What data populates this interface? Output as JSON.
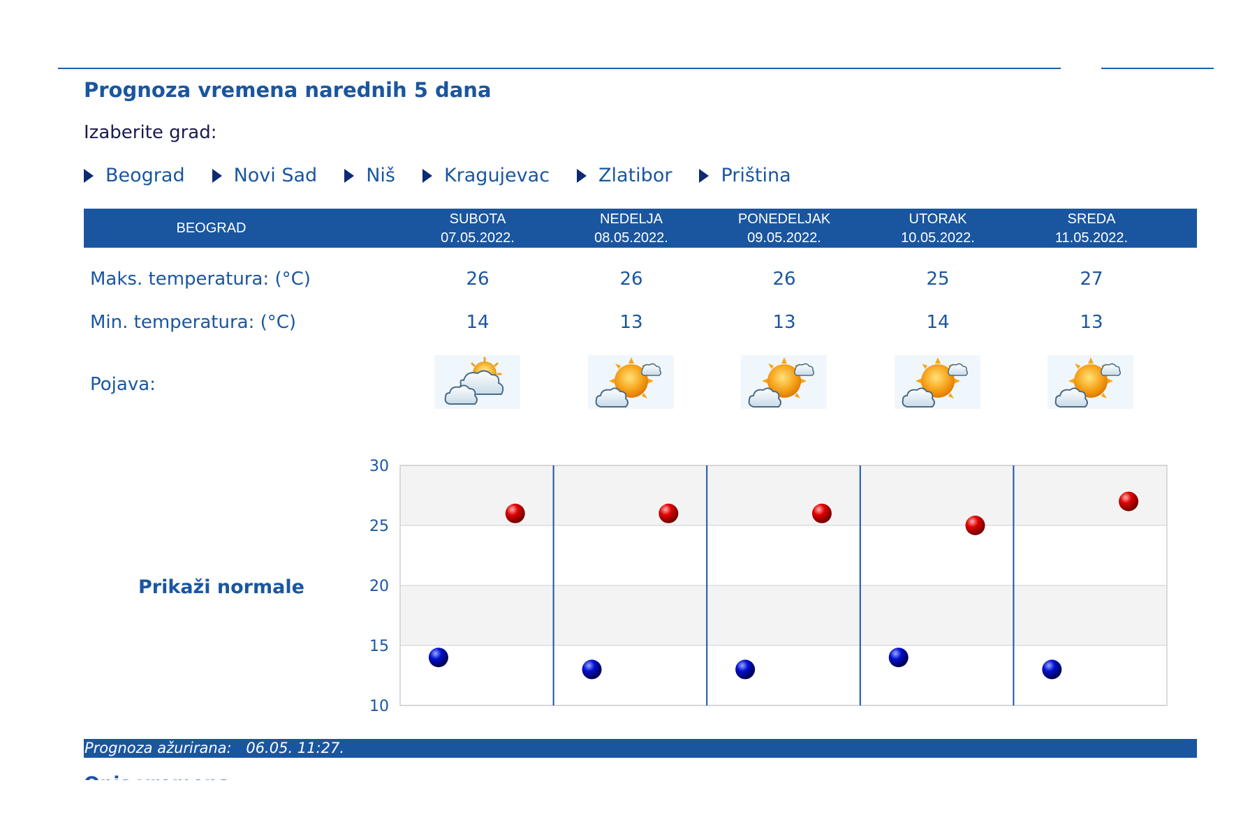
{
  "page": {
    "title": "Prognoza vremena narednih 5 dana",
    "choose_city_label": "Izaberite grad:"
  },
  "cities": [
    "Beograd",
    "Novi Sad",
    "Niš",
    "Kragujevac",
    "Zlatibor",
    "Priština"
  ],
  "forecast": {
    "city_header": "BEOGRAD",
    "days": [
      {
        "name": "SUBOTA",
        "date": "07.05.2022.",
        "max": "26",
        "min": "14",
        "icon": "partly-cloudy-icon"
      },
      {
        "name": "NEDELJA",
        "date": "08.05.2022.",
        "max": "26",
        "min": "13",
        "icon": "sun-with-clouds-icon"
      },
      {
        "name": "PONEDELJAK",
        "date": "09.05.2022.",
        "max": "26",
        "min": "13",
        "icon": "sun-with-clouds-icon"
      },
      {
        "name": "UTORAK",
        "date": "10.05.2022.",
        "max": "25",
        "min": "14",
        "icon": "sun-with-clouds-icon"
      },
      {
        "name": "SREDA",
        "date": "11.05.2022.",
        "max": "27",
        "min": "13",
        "icon": "sun-with-clouds-icon"
      }
    ],
    "max_label": "Maks. temperatura: (°C)",
    "min_label": "Min. temperatura: (°C)",
    "phenomenon_label": "Pojava:"
  },
  "show_normals_link": "Prikaži normale",
  "chart_data": {
    "type": "scatter",
    "title": "",
    "xlabel": "",
    "ylabel": "",
    "ylim": [
      10,
      30
    ],
    "yticks": [
      "30",
      "25",
      "20",
      "15",
      "10"
    ],
    "grid": true,
    "categories": [
      "07.05.2022.",
      "08.05.2022.",
      "09.05.2022.",
      "10.05.2022.",
      "11.05.2022."
    ],
    "series": [
      {
        "role": "max",
        "color": "#cc0000",
        "values": [
          26,
          26,
          26,
          25,
          27
        ]
      },
      {
        "role": "min",
        "color": "#0000b0",
        "values": [
          14,
          13,
          13,
          14,
          13
        ]
      }
    ]
  },
  "updated": {
    "label": "Prognoza ažurirana:",
    "value": "06.05. 11:27."
  },
  "cutoff_heading": "Opis vremena",
  "colors": {
    "accent": "#1a56a0",
    "band": "#f3f3f3",
    "max_point": "#cc0000",
    "min_point": "#0000b0"
  }
}
